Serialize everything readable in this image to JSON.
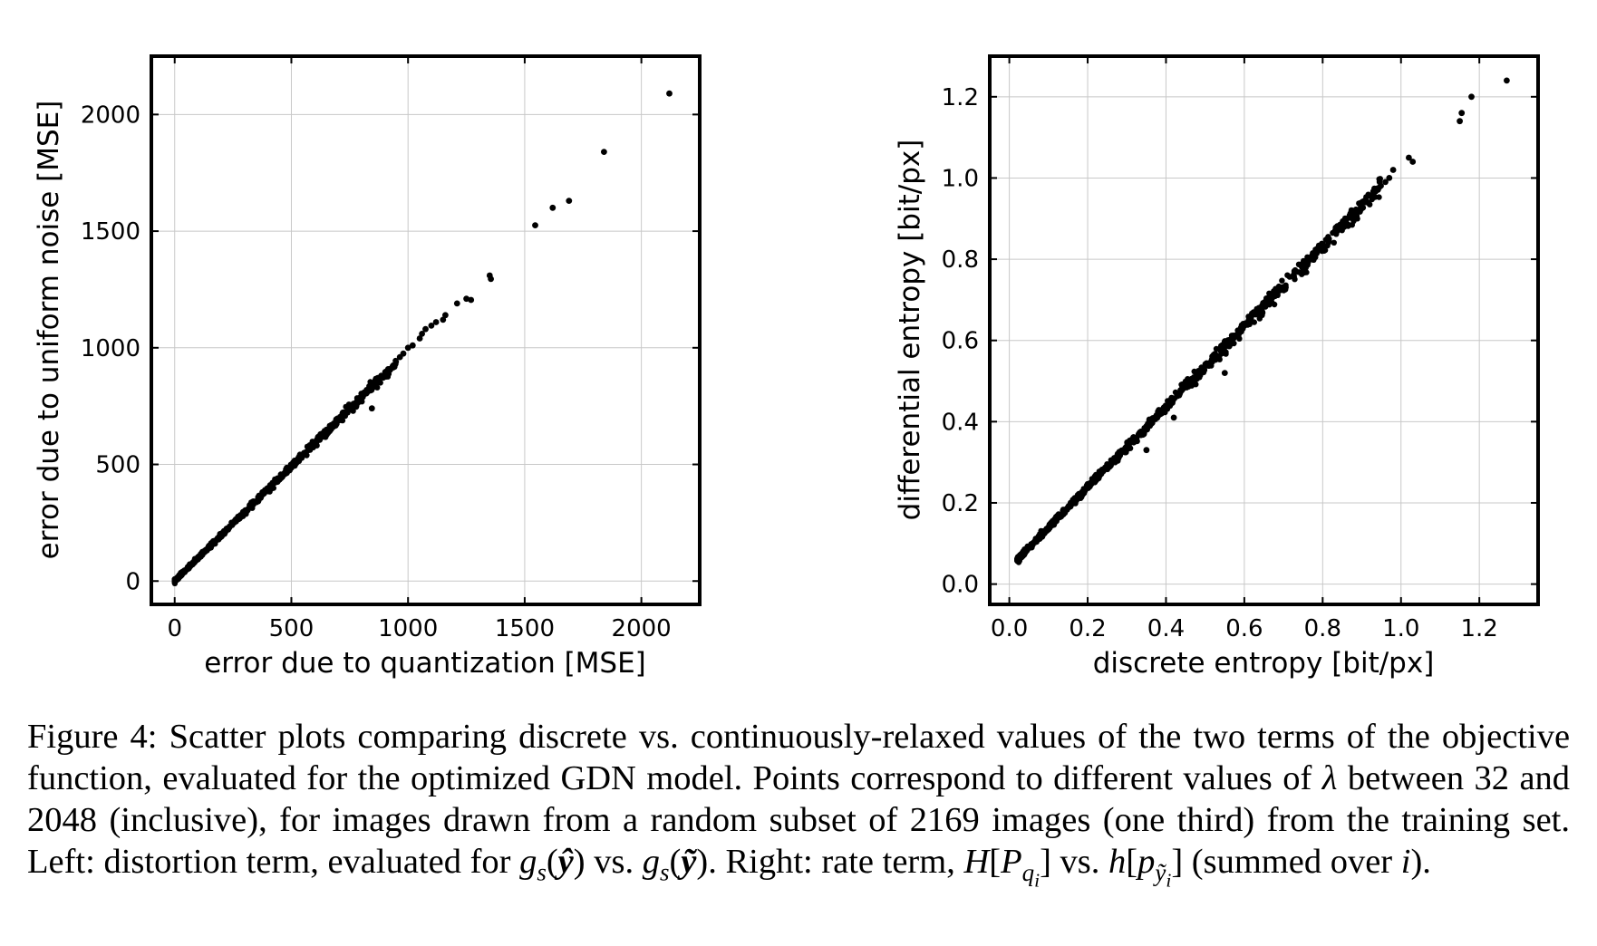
{
  "chart_data": [
    {
      "type": "scatter",
      "xlabel": "error due to quantization [MSE]",
      "ylabel": "error due to uniform noise [MSE]",
      "xlim": [
        -100,
        2250
      ],
      "ylim": [
        -100,
        2250
      ],
      "xticks": [
        0,
        500,
        1000,
        1500,
        2000
      ],
      "yticks": [
        0,
        500,
        1000,
        1500,
        2000
      ],
      "xtick_labels": [
        "0",
        "500",
        "1000",
        "1500",
        "2000"
      ],
      "ytick_labels": [
        "0",
        "500",
        "1000",
        "1500",
        "2000"
      ],
      "grid": true,
      "color": "#000000",
      "bulk_trend": {
        "x_range": [
          0,
          950
        ],
        "slope": 0.985,
        "intercept": 0,
        "approx_points": 700
      },
      "points": [
        [
          1350,
          1310
        ],
        [
          1355,
          1295
        ],
        [
          1545,
          1525
        ],
        [
          1620,
          1600
        ],
        [
          1690,
          1630
        ],
        [
          1840,
          1840
        ],
        [
          2120,
          2090
        ],
        [
          1250,
          1210
        ],
        [
          1270,
          1205
        ],
        [
          1210,
          1190
        ],
        [
          1160,
          1140
        ],
        [
          1150,
          1120
        ],
        [
          1120,
          1110
        ],
        [
          1100,
          1095
        ],
        [
          1075,
          1080
        ],
        [
          1060,
          1060
        ],
        [
          1050,
          1040
        ],
        [
          1020,
          1010
        ],
        [
          1000,
          1000
        ],
        [
          980,
          975
        ],
        [
          965,
          960
        ],
        [
          845,
          740
        ]
      ]
    },
    {
      "type": "scatter",
      "xlabel": "discrete entropy [bit/px]",
      "ylabel": "differential entropy [bit/px]",
      "xlim": [
        -0.05,
        1.35
      ],
      "ylim": [
        -0.05,
        1.3
      ],
      "xticks": [
        0.0,
        0.2,
        0.4,
        0.6,
        0.8,
        1.0,
        1.2
      ],
      "yticks": [
        0.0,
        0.2,
        0.4,
        0.6,
        0.8,
        1.0,
        1.2
      ],
      "xtick_labels": [
        "0.0",
        "0.2",
        "0.4",
        "0.6",
        "0.8",
        "1.0",
        "1.2"
      ],
      "ytick_labels": [
        "0.0",
        "0.2",
        "0.4",
        "0.6",
        "0.8",
        "1.0",
        "1.2"
      ],
      "grid": true,
      "color": "#000000",
      "bulk_trend": {
        "x_range": [
          0.02,
          0.95
        ],
        "slope": 0.99,
        "intercept": 0.04,
        "approx_points": 900
      },
      "points": [
        [
          0.96,
          0.99
        ],
        [
          0.97,
          1.0
        ],
        [
          0.98,
          1.02
        ],
        [
          1.02,
          1.05
        ],
        [
          1.03,
          1.04
        ],
        [
          1.15,
          1.14
        ],
        [
          1.155,
          1.16
        ],
        [
          1.18,
          1.2
        ],
        [
          1.27,
          1.24
        ],
        [
          0.55,
          0.52
        ],
        [
          0.42,
          0.41
        ],
        [
          0.35,
          0.33
        ]
      ]
    }
  ],
  "caption": {
    "label": "Figure 4:",
    "line1": "Scatter plots comparing discrete vs. continuously-relaxed values of the two terms of the",
    "line2": "objective function, evaluated for the optimized GDN model. Points correspond to different values",
    "line3a": "of",
    "lambda": "λ",
    "line3b": "between 32 and 2048 (inclusive), for images drawn from a random subset of 2169 images (one",
    "line4a": "third) from the training set. Left: distortion term, evaluated for",
    "line4b": "vs.",
    "line4c": ". Right: rate term,",
    "line5a": "vs.",
    "line5b": "(summed over",
    "line5c": ")."
  }
}
